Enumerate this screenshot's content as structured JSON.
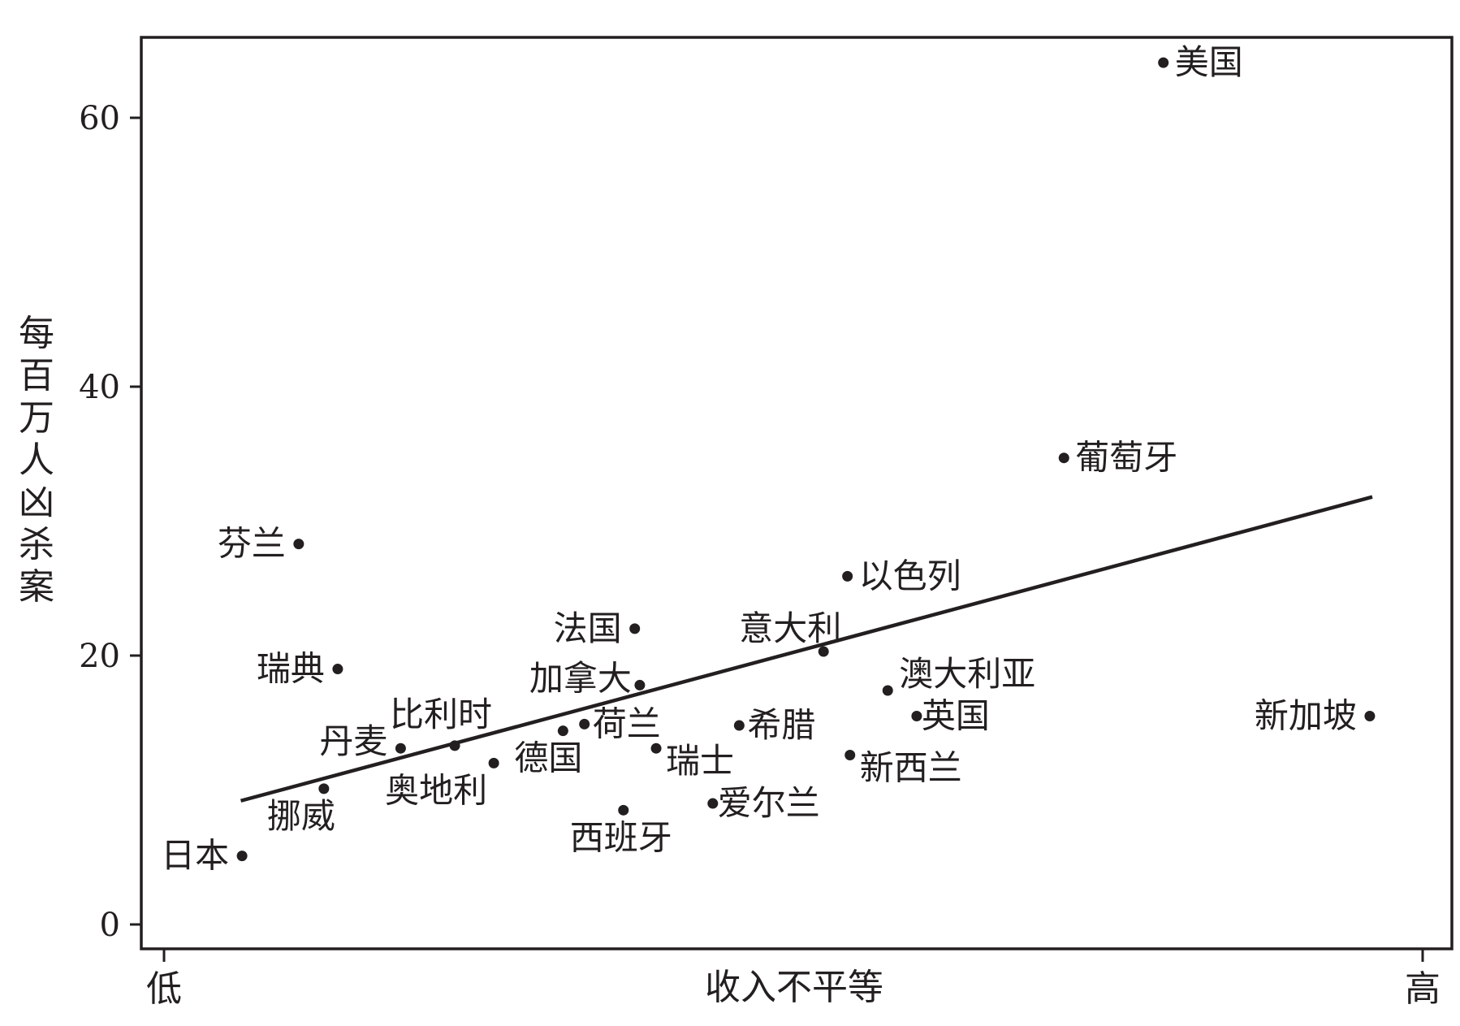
{
  "chart_data": {
    "type": "scatter",
    "xlabel": "收入不平等",
    "ylabel": "每百万人凶杀案",
    "x_end_labels": {
      "low": "低",
      "high": "高"
    },
    "x_scale": "ordinal (low → high), values 0–1",
    "xlim": [
      0,
      1
    ],
    "ylim": [
      0,
      65
    ],
    "yticks": [
      0,
      20,
      40,
      60
    ],
    "grid": false,
    "colors": {
      "ink": "#231f20"
    },
    "points": [
      {
        "label": "美国",
        "x": 0.794,
        "y": 64.1
      },
      {
        "label": "葡萄牙",
        "x": 0.715,
        "y": 34.7
      },
      {
        "label": "芬兰",
        "x": 0.107,
        "y": 28.3
      },
      {
        "label": "以色列",
        "x": 0.543,
        "y": 25.9
      },
      {
        "label": "法国",
        "x": 0.374,
        "y": 22.0
      },
      {
        "label": "意大利",
        "x": 0.524,
        "y": 20.3
      },
      {
        "label": "瑞典",
        "x": 0.138,
        "y": 19.0
      },
      {
        "label": "加拿大",
        "x": 0.378,
        "y": 17.8
      },
      {
        "label": "澳大利亚",
        "x": 0.575,
        "y": 17.4
      },
      {
        "label": "英国",
        "x": 0.598,
        "y": 15.5
      },
      {
        "label": "新加坡",
        "x": 0.958,
        "y": 15.5
      },
      {
        "label": "荷兰",
        "x": 0.334,
        "y": 14.9
      },
      {
        "label": "希腊",
        "x": 0.457,
        "y": 14.8
      },
      {
        "label": "德国",
        "x": 0.317,
        "y": 14.4
      },
      {
        "label": "比利时",
        "x": 0.231,
        "y": 13.3
      },
      {
        "label": "丹麦",
        "x": 0.188,
        "y": 13.1
      },
      {
        "label": "瑞士",
        "x": 0.391,
        "y": 13.1
      },
      {
        "label": "新西兰",
        "x": 0.545,
        "y": 12.6
      },
      {
        "label": "奥地利",
        "x": 0.262,
        "y": 12.0
      },
      {
        "label": "挪威",
        "x": 0.127,
        "y": 10.1
      },
      {
        "label": "爱尔兰",
        "x": 0.436,
        "y": 9.0
      },
      {
        "label": "西班牙",
        "x": 0.365,
        "y": 8.5
      },
      {
        "label": "日本",
        "x": 0.062,
        "y": 5.1
      }
    ],
    "trendline": {
      "x": [
        0.061,
        0.96
      ],
      "y": [
        9.2,
        31.8
      ]
    }
  }
}
